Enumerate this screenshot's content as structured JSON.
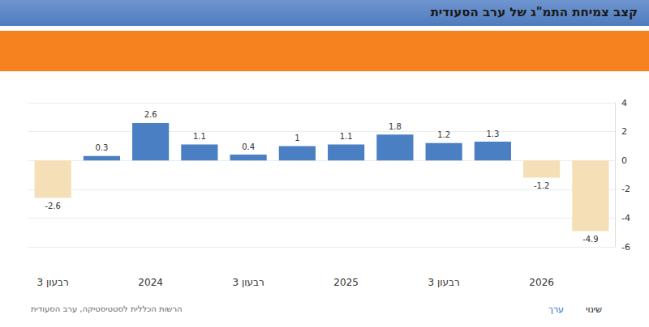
{
  "chart_data": {
    "type": "bar",
    "title": "קצב צמיחת התמ\"ג של ערב הסעודית",
    "categories": [
      "רבעון 3",
      null,
      "2024",
      null,
      "רבעון 3",
      null,
      "2025",
      null,
      "רבעון 3",
      null,
      "2026",
      null
    ],
    "values": [
      -2.6,
      0.3,
      2.6,
      1.1,
      0.4,
      1,
      1.1,
      1.8,
      1.2,
      1.3,
      -1.2,
      -4.9
    ],
    "colors": [
      "#f5dfb6",
      "#4a7fc4",
      "#4a7fc4",
      "#4a7fc4",
      "#4a7fc4",
      "#4a7fc4",
      "#4a7fc4",
      "#4a7fc4",
      "#4a7fc4",
      "#4a7fc4",
      "#f5dfb6",
      "#f5dfb6"
    ],
    "ylim": [
      -6,
      4
    ],
    "yticks": [
      -6,
      -4,
      -2,
      0,
      2,
      4
    ],
    "grid": true,
    "data_labels": true,
    "annotations": [
      "הרשות הכללית לסטטיסטיקה, ערב הסעודית",
      "ערך",
      "שינוי"
    ]
  }
}
